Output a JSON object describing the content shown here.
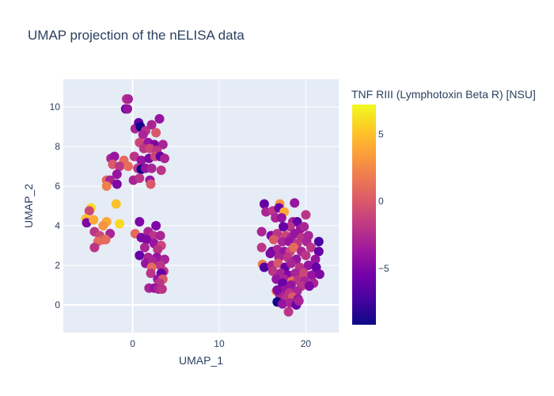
{
  "chart_data": {
    "type": "scatter",
    "title": "UMAP projection of the nELISA data",
    "xlabel": "UMAP_1",
    "ylabel": "UMAP_2",
    "xlim": [
      -8,
      23.8
    ],
    "ylim": [
      -1.4,
      11.4
    ],
    "x_ticks": [
      0,
      10,
      20
    ],
    "y_ticks": [
      0,
      2,
      4,
      6,
      8,
      10
    ],
    "grid": true,
    "colorbar": {
      "title": "TNF RIII (Lymphotoxin Beta R) [NSU]",
      "min": -9.2,
      "max": 7.2,
      "ticks": [
        5,
        0,
        -5
      ],
      "colorscale": [
        "#0d0887",
        "#46039f",
        "#7201a8",
        "#9c179e",
        "#bd3786",
        "#d8576b",
        "#ed7953",
        "#fb9f3a",
        "#fdca26",
        "#f0f921"
      ]
    },
    "points": [
      [
        -0.7,
        10.4,
        -2
      ],
      [
        -0.5,
        10.4,
        -3
      ],
      [
        -0.8,
        9.9,
        -6
      ],
      [
        -0.6,
        9.9,
        -4
      ],
      [
        0.3,
        8.9,
        -3
      ],
      [
        0.7,
        9.2,
        -6
      ],
      [
        0.9,
        9.0,
        -9
      ],
      [
        1.5,
        8.8,
        -2
      ],
      [
        2.2,
        9.1,
        -3
      ],
      [
        3.1,
        9.4,
        -4
      ],
      [
        2.7,
        8.7,
        0
      ],
      [
        1.2,
        8.6,
        -3
      ],
      [
        0.8,
        8.2,
        -1
      ],
      [
        1.8,
        8.2,
        -4
      ],
      [
        2.5,
        8.1,
        -5
      ],
      [
        3.5,
        8.1,
        -3
      ],
      [
        1.3,
        7.9,
        -2
      ],
      [
        2.0,
        7.9,
        -1
      ],
      [
        2.8,
        7.8,
        -2
      ],
      [
        -2.5,
        7.4,
        -3
      ],
      [
        -2.1,
        7.5,
        -4
      ],
      [
        -1.0,
        7.3,
        1
      ],
      [
        0.2,
        7.5,
        -2
      ],
      [
        1.0,
        7.3,
        -4
      ],
      [
        1.9,
        7.4,
        -5
      ],
      [
        2.6,
        7.5,
        -1
      ],
      [
        3.2,
        7.5,
        -6
      ],
      [
        3.7,
        7.4,
        -3
      ],
      [
        -2.3,
        7.1,
        0
      ],
      [
        -1.5,
        7.0,
        -2
      ],
      [
        -0.5,
        7.0,
        1
      ],
      [
        0.6,
        6.9,
        -2
      ],
      [
        1.0,
        6.85,
        -9
      ],
      [
        1.5,
        6.9,
        -4
      ],
      [
        2.2,
        6.9,
        -3
      ],
      [
        3.3,
        6.8,
        -2
      ],
      [
        -1.8,
        6.6,
        -4
      ],
      [
        -3.0,
        6.3,
        1
      ],
      [
        -2.6,
        6.3,
        -3
      ],
      [
        -1.8,
        6.1,
        -5
      ],
      [
        0.1,
        6.3,
        -3
      ],
      [
        0.8,
        6.4,
        -2
      ],
      [
        2.0,
        6.3,
        -4
      ],
      [
        2.1,
        6.1,
        0
      ],
      [
        -3.0,
        6.0,
        2
      ],
      [
        -4.8,
        4.9,
        6
      ],
      [
        -5.0,
        4.75,
        -1
      ],
      [
        -5.4,
        4.35,
        5
      ],
      [
        -5.3,
        4.15,
        -5
      ],
      [
        -4.5,
        4.3,
        4
      ],
      [
        -3.0,
        4.2,
        4
      ],
      [
        -3.4,
        4.0,
        3
      ],
      [
        -1.9,
        5.1,
        5
      ],
      [
        -1.5,
        4.1,
        6
      ],
      [
        -4.4,
        3.7,
        -2
      ],
      [
        -3.8,
        3.5,
        -1
      ],
      [
        -2.6,
        3.6,
        -3
      ],
      [
        -3.4,
        3.3,
        0
      ],
      [
        -4.0,
        3.2,
        1
      ],
      [
        -3.1,
        3.3,
        1
      ],
      [
        -4.4,
        2.9,
        -2
      ],
      [
        0.8,
        4.2,
        -5
      ],
      [
        2.7,
        4.0,
        -5
      ],
      [
        0.3,
        3.6,
        1
      ],
      [
        1.0,
        3.4,
        -5
      ],
      [
        1.8,
        3.7,
        -3
      ],
      [
        2.4,
        3.5,
        -2
      ],
      [
        3.2,
        3.5,
        -3
      ],
      [
        1.6,
        3.3,
        -5
      ],
      [
        2.5,
        3.1,
        -4
      ],
      [
        3.3,
        3.0,
        -1
      ],
      [
        1.4,
        2.9,
        -3
      ],
      [
        2.9,
        2.8,
        -2
      ],
      [
        0.8,
        2.5,
        -6
      ],
      [
        1.8,
        2.4,
        -3
      ],
      [
        2.8,
        2.4,
        -4
      ],
      [
        3.7,
        2.3,
        -3
      ],
      [
        1.5,
        2.1,
        -4
      ],
      [
        2.3,
        2.2,
        -3
      ],
      [
        3.2,
        2.0,
        -2
      ],
      [
        2.2,
        1.9,
        1
      ],
      [
        3.6,
        1.7,
        -2
      ],
      [
        2.1,
        1.6,
        -2
      ],
      [
        3.3,
        1.6,
        -6
      ],
      [
        2.9,
        1.3,
        -4
      ],
      [
        3.5,
        1.3,
        0
      ],
      [
        3.1,
        1.1,
        -2
      ],
      [
        1.9,
        0.85,
        -3
      ],
      [
        2.5,
        0.85,
        -4
      ],
      [
        3.0,
        0.8,
        -3
      ],
      [
        3.4,
        0.8,
        -2
      ],
      [
        15.2,
        5.1,
        -6
      ],
      [
        17.0,
        5.1,
        3
      ],
      [
        18.7,
        5.15,
        -4
      ],
      [
        15.4,
        4.7,
        -3
      ],
      [
        16.2,
        4.75,
        -2
      ],
      [
        16.9,
        4.9,
        -6
      ],
      [
        17.5,
        4.7,
        4
      ],
      [
        20.0,
        4.55,
        -2
      ],
      [
        16.5,
        4.4,
        -3
      ],
      [
        17.2,
        4.4,
        -4
      ],
      [
        18.5,
        4.2,
        -3
      ],
      [
        19.0,
        4.2,
        -6
      ],
      [
        18.2,
        3.95,
        -2
      ],
      [
        17.4,
        3.95,
        -6
      ],
      [
        19.4,
        3.85,
        -4
      ],
      [
        19.8,
        3.95,
        -3
      ],
      [
        14.9,
        3.7,
        -3
      ],
      [
        16.0,
        3.5,
        -5
      ],
      [
        16.7,
        3.6,
        -2
      ],
      [
        17.7,
        3.5,
        -1
      ],
      [
        18.3,
        3.4,
        -3
      ],
      [
        18.7,
        3.6,
        -4
      ],
      [
        19.5,
        3.4,
        -2
      ],
      [
        20.3,
        3.5,
        -3
      ],
      [
        21.5,
        3.2,
        -7
      ],
      [
        16.3,
        3.3,
        0
      ],
      [
        17.3,
        3.2,
        -3
      ],
      [
        18.1,
        3.2,
        -4
      ],
      [
        19.0,
        3.1,
        -2
      ],
      [
        20.1,
        3.2,
        -3
      ],
      [
        14.9,
        2.9,
        -2
      ],
      [
        16.1,
        2.7,
        -6
      ],
      [
        16.7,
        2.8,
        -3
      ],
      [
        17.5,
        2.7,
        -4
      ],
      [
        18.2,
        2.7,
        -1
      ],
      [
        18.6,
        2.9,
        1
      ],
      [
        19.5,
        2.7,
        -3
      ],
      [
        20.6,
        2.9,
        -2
      ],
      [
        21.5,
        2.7,
        -6
      ],
      [
        15.9,
        2.6,
        -5
      ],
      [
        16.9,
        2.4,
        -3
      ],
      [
        17.9,
        2.4,
        -2
      ],
      [
        18.9,
        2.3,
        -4
      ],
      [
        20.0,
        2.5,
        -2
      ],
      [
        21.1,
        2.3,
        -4
      ],
      [
        15.0,
        2.05,
        2
      ],
      [
        15.2,
        1.9,
        -7
      ],
      [
        16.1,
        2.0,
        -3
      ],
      [
        16.8,
        2.1,
        0
      ],
      [
        17.6,
        1.9,
        -6
      ],
      [
        18.3,
        2.1,
        -3
      ],
      [
        19.3,
        1.9,
        -2
      ],
      [
        20.3,
        2.0,
        -4
      ],
      [
        21.2,
        1.9,
        -6
      ],
      [
        16.2,
        1.7,
        -2
      ],
      [
        17.1,
        1.6,
        -3
      ],
      [
        18.0,
        1.5,
        -5
      ],
      [
        18.8,
        1.6,
        -3
      ],
      [
        19.8,
        1.6,
        -1
      ],
      [
        20.7,
        1.5,
        -4
      ],
      [
        21.6,
        1.55,
        -5
      ],
      [
        16.6,
        1.3,
        -4
      ],
      [
        17.5,
        1.3,
        -3
      ],
      [
        18.4,
        1.2,
        1
      ],
      [
        19.1,
        1.25,
        -2
      ],
      [
        19.9,
        1.2,
        -3
      ],
      [
        20.9,
        1.1,
        -3
      ],
      [
        17.3,
        1.1,
        -6
      ],
      [
        18.3,
        1.0,
        -4
      ],
      [
        19.5,
        0.95,
        -2
      ],
      [
        20.4,
        0.95,
        -5
      ],
      [
        16.6,
        0.7,
        2
      ],
      [
        17.5,
        0.75,
        -4
      ],
      [
        18.1,
        0.6,
        -2
      ],
      [
        19.0,
        0.7,
        -3
      ],
      [
        17.0,
        0.5,
        -3
      ],
      [
        17.8,
        0.35,
        -2
      ],
      [
        18.5,
        0.4,
        0
      ],
      [
        19.1,
        0.3,
        -4
      ],
      [
        16.7,
        0.15,
        -9
      ],
      [
        17.3,
        0.05,
        -4
      ],
      [
        18.2,
        0.1,
        -3
      ],
      [
        18.9,
        0.0,
        -6
      ],
      [
        19.2,
        0.2,
        -3
      ],
      [
        18.0,
        -0.35,
        -2
      ],
      [
        16.7,
        0.75,
        -5
      ]
    ]
  }
}
